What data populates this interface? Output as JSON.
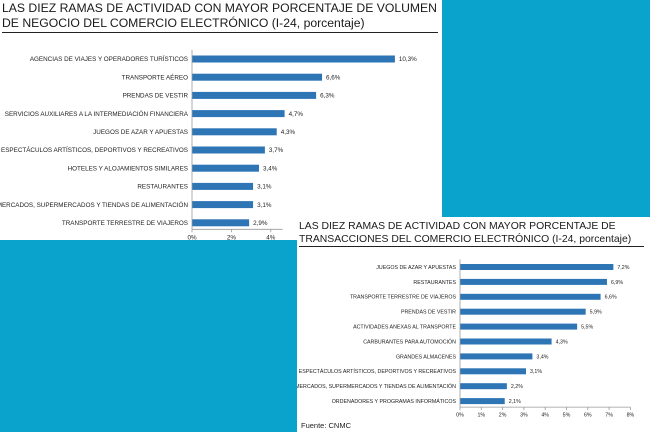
{
  "chart1": {
    "title": "LAS DIEZ RAMAS DE ACTIVIDAD CON MAYOR PORCENTAJE DE VOLUMEN DE NEGOCIO DEL COMERCIO ELECTRÓNICO (I-24, porcentaje)"
  },
  "chart2": {
    "title": "LAS DIEZ RAMAS DE ACTIVIDAD CON MAYOR PORCENTAJE DE TRANSACCIONES DEL COMERCIO ELECTRÓNICO (I-24, porcentaje)",
    "source": "Fuente: CNMC"
  },
  "colors": {
    "bar": "#2e75b6",
    "background": "#0aa3cc"
  },
  "chart_data": [
    {
      "type": "bar",
      "orientation": "horizontal",
      "title": "LAS DIEZ RAMAS DE ACTIVIDAD CON MAYOR PORCENTAJE DE VOLUMEN DE NEGOCIO DEL COMERCIO ELECTRÓNICO (I-24, porcentaje)",
      "categories": [
        "AGENCIAS DE VIAJES Y OPERADORES TURÍSTICOS",
        "TRANSPORTE AÉREO",
        "PRENDAS DE VESTIR",
        "SERVICIOS AUXILIARES A LA INTERMEDIACIÓN FINANCIERA",
        "JUEGOS DE AZAR Y APUESTAS",
        "ESPECTÁCULOS ARTÍSTICOS, DEPORTIVOS Y RECREATIVOS",
        "HOTELES Y ALOJAMIENTOS SIMILARES",
        "RESTAURANTES",
        "HIPERMERCADOS, SUPERMERCADOS Y TIENDAS DE ALIMENTACIÓN",
        "TRANSPORTE TERRESTRE DE VIAJEROS"
      ],
      "values": [
        10.3,
        6.6,
        6.3,
        4.7,
        4.3,
        3.7,
        3.4,
        3.1,
        3.1,
        2.9
      ],
      "value_labels": [
        "10,3%",
        "6,6%",
        "6,3%",
        "4,7%",
        "4,3%",
        "3,7%",
        "3,4%",
        "3,1%",
        "3,1%",
        "2,9%"
      ],
      "xticks": [
        "0%",
        "2%",
        "4%"
      ],
      "xlim": [
        0,
        12
      ],
      "grid": false,
      "legend": "none"
    },
    {
      "type": "bar",
      "orientation": "horizontal",
      "title": "LAS DIEZ RAMAS DE ACTIVIDAD CON MAYOR PORCENTAJE DE TRANSACCIONES DEL COMERCIO ELECTRÓNICO (I-24, porcentaje)",
      "categories": [
        "JUEGOS DE AZAR Y APUESTAS",
        "RESTAURANTES",
        "TRANSPORTE TERRESTRE DE VIAJEROS",
        "PRENDAS DE VESTIR",
        "ACTIVIDADES ANEXAS AL TRANSPORTE",
        "CARBURANTES PARA AUTOMOCIÓN",
        "GRANDES ALMACENES",
        "ESPECTÁCULOS ARTÍSTICOS, DEPORTIVOS Y RECREATIVOS",
        "HIPERMERCADOS, SUPERMERCADOS Y TIENDAS DE ALIMENTACIÓN",
        "ORDENADORES Y PROGRAMAS INFORMÁTICOS"
      ],
      "values": [
        7.2,
        6.9,
        6.6,
        5.9,
        5.5,
        4.3,
        3.4,
        3.1,
        2.2,
        2.1
      ],
      "value_labels": [
        "7,2%",
        "6,9%",
        "6,6%",
        "5,9%",
        "5,5%",
        "4,3%",
        "3,4%",
        "3,1%",
        "2,2%",
        "2,1%"
      ],
      "xticks": [
        "0%",
        "1%",
        "2%",
        "3%",
        "4%",
        "5%",
        "6%",
        "7%",
        "8%"
      ],
      "xlim": [
        0,
        8
      ],
      "grid": false,
      "legend": "none",
      "source": "Fuente: CNMC"
    }
  ]
}
